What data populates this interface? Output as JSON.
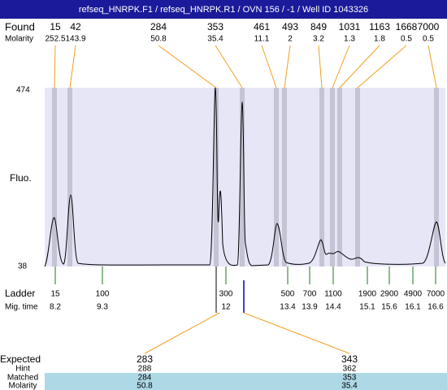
{
  "header": {
    "title": "refseq_HNRPK.F1 / refseq_HNRPK.R1 / OVN 156 / -1 / Well ID 1043326"
  },
  "found": {
    "label": "Found",
    "molarity_label": "Molarity",
    "peaks": [
      {
        "size": 15,
        "molarity": 252.5
      },
      {
        "size": 42,
        "molarity": 143.9
      },
      {
        "size": 284,
        "molarity": 50.8
      },
      {
        "size": 353,
        "molarity": 35.4
      },
      {
        "size": 461,
        "molarity": 11.1
      },
      {
        "size": 493,
        "molarity": 2
      },
      {
        "size": 849,
        "molarity": 3.2
      },
      {
        "size": 1031,
        "molarity": 1.3
      },
      {
        "size": 1163,
        "molarity": 1.8
      },
      {
        "size": 1668,
        "molarity": 0.5
      },
      {
        "size": 7000,
        "molarity": 0.5
      }
    ]
  },
  "plot": {
    "label": "Fluo.",
    "ymax": 474,
    "ymin": 38
  },
  "ladder": {
    "label": "Ladder",
    "mig_label": "Mig. time",
    "items": [
      {
        "size": 15,
        "time": 8.2
      },
      {
        "size": 100,
        "time": 9.3
      },
      {
        "size": 300,
        "time": 12
      },
      {
        "size": 500,
        "time": 13.4
      },
      {
        "size": 700,
        "time": 13.9
      },
      {
        "size": 1100,
        "time": 14.4
      },
      {
        "size": 1900,
        "time": 15.1
      },
      {
        "size": 2900,
        "time": 15.6
      },
      {
        "size": 4900,
        "time": 16.1
      },
      {
        "size": 7000,
        "time": 16.6
      }
    ]
  },
  "expected": {
    "label": "Expected",
    "hint_label": "Hint",
    "matched_label": "Matched",
    "molarity_label": "Molarity",
    "columns": [
      {
        "expected": 283,
        "hint": 288,
        "matched": 284,
        "molarity": 50.8
      },
      {
        "expected": 343,
        "hint": 362,
        "matched": 353,
        "molarity": 35.4
      }
    ]
  }
}
